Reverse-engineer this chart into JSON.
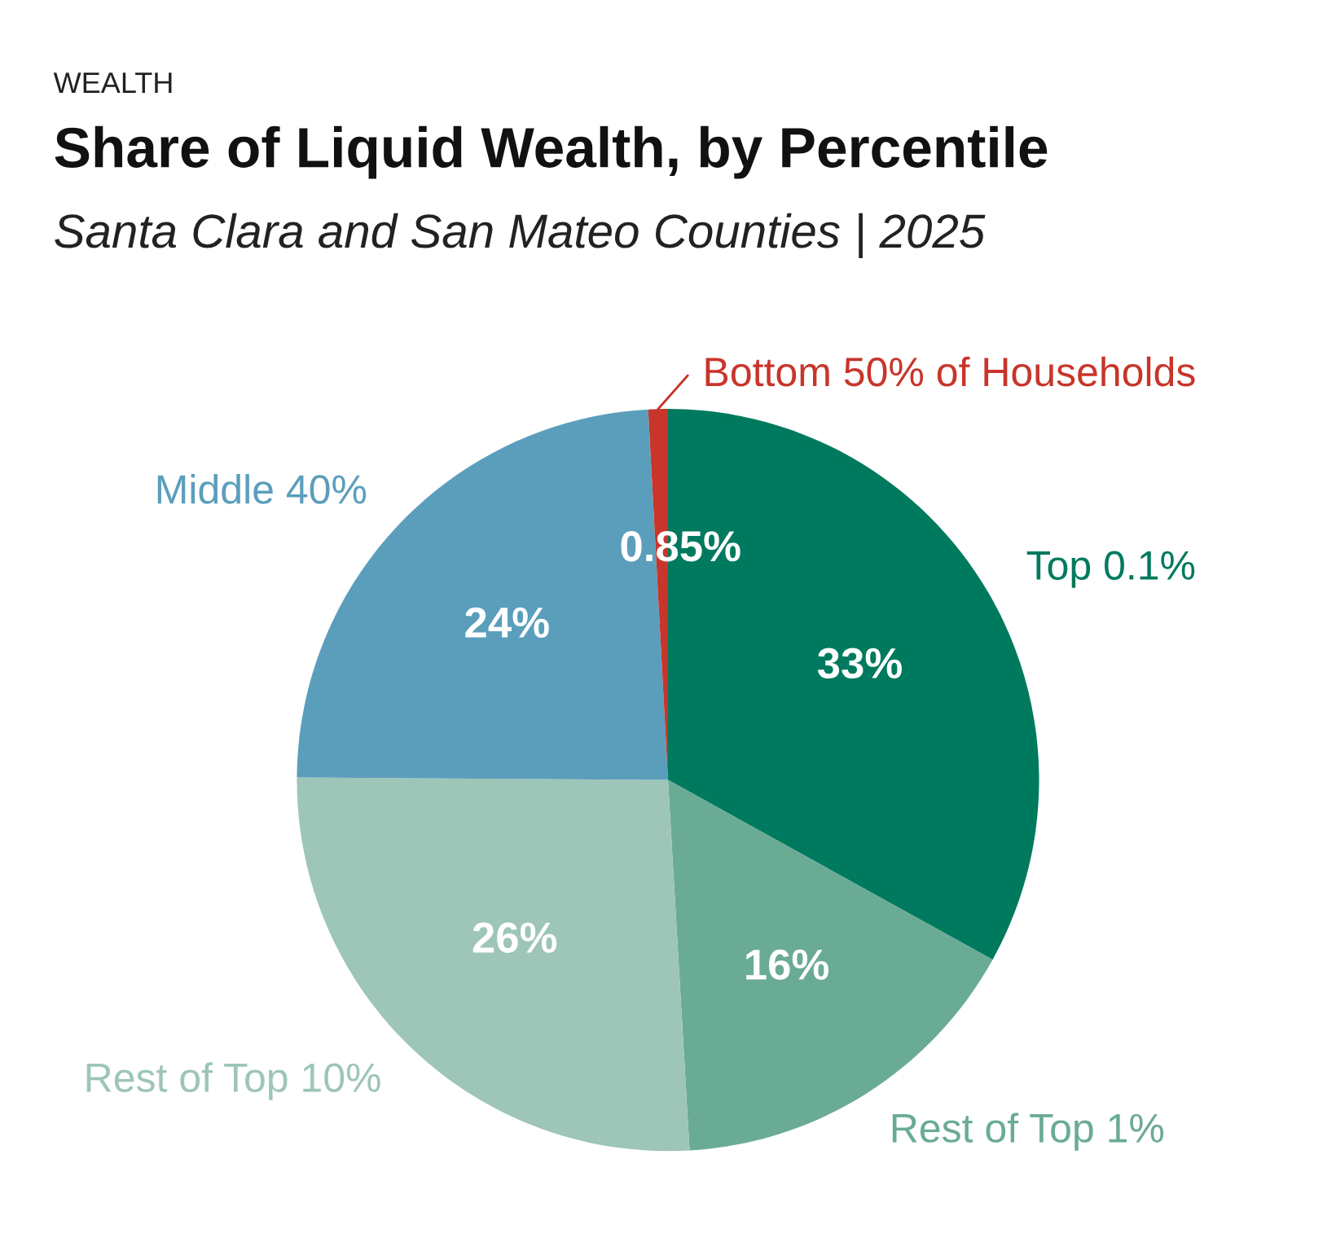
{
  "chart_data": {
    "type": "pie",
    "title": "Share of Liquid Wealth, by Percentile",
    "subtitle": "Santa Clara and San Mateo Counties | 2025",
    "annotations": [
      "WEALTH"
    ],
    "categories": [
      "Top 0.1%",
      "Rest of Top 1%",
      "Rest of Top 10%",
      "Middle 40%",
      "Bottom 50% of Households"
    ],
    "values": [
      33,
      16,
      26,
      24,
      0.85
    ],
    "value_labels": [
      "33%",
      "16%",
      "26%",
      "24%",
      "0.85%"
    ],
    "colors": [
      "#007a5e",
      "#6aab96",
      "#9dc5b8",
      "#5b9ebc",
      "#c8352a"
    ],
    "legend": false
  }
}
